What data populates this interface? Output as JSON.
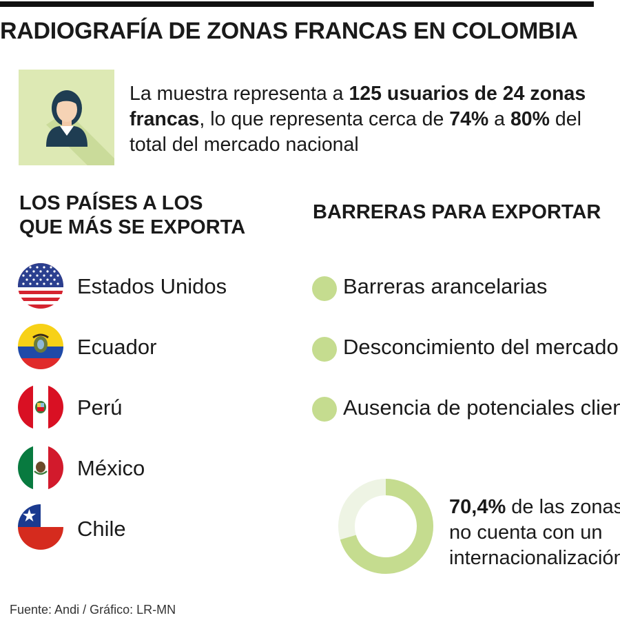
{
  "title": "RADIOGRAFÍA DE ZONAS FRANCAS EN COLOMBIA",
  "intro": {
    "p1": "La muestra representa a ",
    "b1": "125 usuarios de 24 zonas",
    "b2": "francas",
    "p2": ", lo que representa cerca de ",
    "b3": "74%",
    "p3": " a ",
    "b4": "80%",
    "p4": " del",
    "p5": "total del mercado nacional",
    "icon": "user-icon"
  },
  "countries_section": {
    "heading_line1": "LOS PAÍSES A LOS",
    "heading_line2": "QUE MÁS SE EXPORTA",
    "items": [
      {
        "name": "Estados Unidos",
        "flag": "usa-flag-icon"
      },
      {
        "name": "Ecuador",
        "flag": "ecuador-flag-icon"
      },
      {
        "name": "Perú",
        "flag": "peru-flag-icon"
      },
      {
        "name": "México",
        "flag": "mexico-flag-icon"
      },
      {
        "name": "Chile",
        "flag": "chile-flag-icon"
      }
    ]
  },
  "barriers_section": {
    "heading": "BARRERAS PARA EXPORTAR",
    "items": [
      "Barreras arancelarias",
      "Desconcimiento del mercado",
      "Ausencia de potenciales clientes"
    ]
  },
  "stat": {
    "value": "70,4%",
    "percent": 70.4,
    "line1_rest": " de las zonas",
    "line2": "no cuenta con un",
    "line3": "internacionalización"
  },
  "source": "Fuente: Andi / Gráfico: LR-MN",
  "colors": {
    "accent_green": "#c5dc8f",
    "light_green_bg": "#dde9b4",
    "donut_track": "#eef4e4"
  }
}
